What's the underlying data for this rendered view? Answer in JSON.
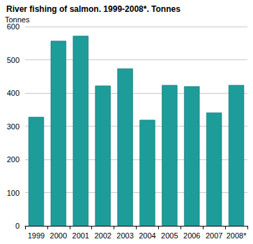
{
  "chart_data": {
    "type": "bar",
    "title": "River fishing of salmon. 1999-2008*. Tonnes",
    "y_label": "Tonnes",
    "categories": [
      "1999",
      "2000",
      "2001",
      "2002",
      "2003",
      "2004",
      "2005",
      "2006",
      "2007",
      "2008*"
    ],
    "values": [
      328,
      557,
      572,
      422,
      474,
      319,
      424,
      420,
      341,
      424
    ],
    "color": "#1d9c9a",
    "ylim": [
      0,
      600
    ],
    "yticks": [
      0,
      100,
      200,
      300,
      400,
      500,
      600
    ],
    "grid": true
  }
}
